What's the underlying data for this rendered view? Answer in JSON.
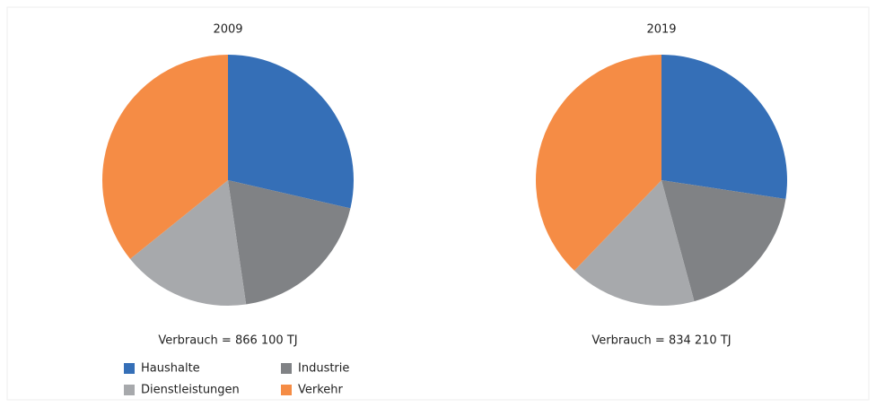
{
  "chart_data": [
    {
      "type": "pie",
      "title": "2009",
      "note": "Verbrauch = 866 100 TJ",
      "values": [
        28.6,
        19.1,
        16.5,
        35.8
      ]
    },
    {
      "type": "pie",
      "title": "2019",
      "note": "Verbrauch = 834 210 TJ",
      "values": [
        27.4,
        18.4,
        16.4,
        37.8
      ]
    }
  ],
  "legend": {
    "labels": [
      "Haushalte",
      "Industrie",
      "Dienstleistungen",
      "Verkehr"
    ],
    "colors": [
      "#356fb7",
      "#808285",
      "#a7a9ac",
      "#f58c45"
    ]
  }
}
